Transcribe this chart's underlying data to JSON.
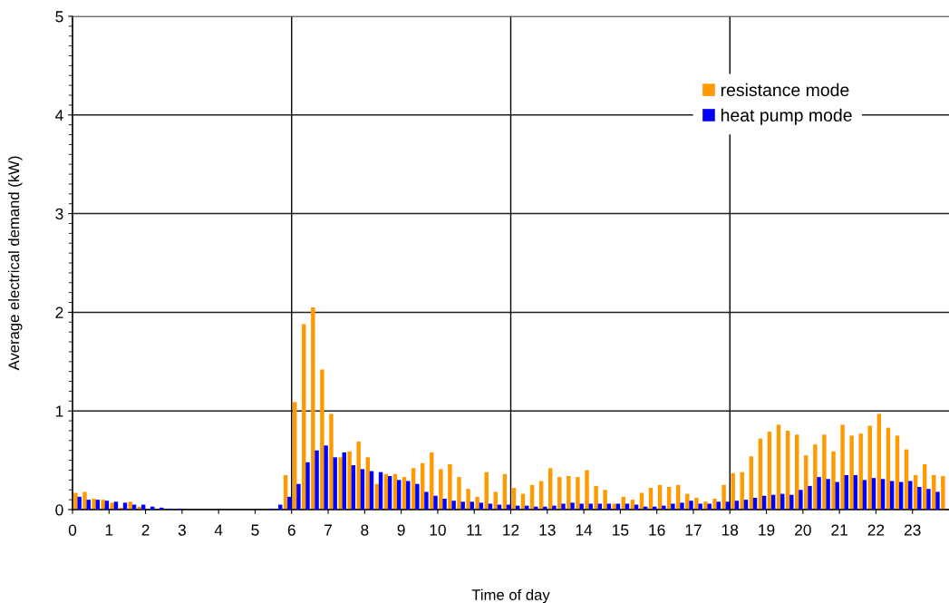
{
  "chart_data": {
    "type": "bar",
    "xlabel": "Time of day",
    "ylabel": "Average electrical demand (kW)",
    "x": [
      0.125,
      0.375,
      0.625,
      0.875,
      1.125,
      1.375,
      1.625,
      1.875,
      2.125,
      2.375,
      2.625,
      2.875,
      3.125,
      3.375,
      3.625,
      3.875,
      4.125,
      4.375,
      4.625,
      4.875,
      5.125,
      5.375,
      5.625,
      5.875,
      6.125,
      6.375,
      6.625,
      6.875,
      7.125,
      7.375,
      7.625,
      7.875,
      8.125,
      8.375,
      8.625,
      8.875,
      9.125,
      9.375,
      9.625,
      9.875,
      10.125,
      10.375,
      10.625,
      10.875,
      11.125,
      11.375,
      11.625,
      11.875,
      12.125,
      12.375,
      12.625,
      12.875,
      13.125,
      13.375,
      13.625,
      13.875,
      14.125,
      14.375,
      14.625,
      14.875,
      15.125,
      15.375,
      15.625,
      15.875,
      16.125,
      16.375,
      16.625,
      16.875,
      17.125,
      17.375,
      17.625,
      17.875,
      18.125,
      18.375,
      18.625,
      18.875,
      19.125,
      19.375,
      19.625,
      19.875,
      20.125,
      20.375,
      20.625,
      20.875,
      21.125,
      21.375,
      21.625,
      21.875,
      22.125,
      22.375,
      22.625,
      22.875,
      23.125,
      23.375,
      23.625,
      23.875
    ],
    "series": [
      {
        "name": "resistance mode",
        "color": "#ff9900",
        "values": [
          0.17,
          0.18,
          0.11,
          0.1,
          0.07,
          0.02,
          0.08,
          0.03,
          0,
          0,
          0,
          0,
          0,
          0,
          0,
          0,
          0,
          0,
          0,
          0,
          0,
          0,
          0,
          0.35,
          1.09,
          1.88,
          2.05,
          1.42,
          0.97,
          0.53,
          0.59,
          0.69,
          0.53,
          0.26,
          0.36,
          0.36,
          0.33,
          0.42,
          0.47,
          0.58,
          0.41,
          0.46,
          0.33,
          0.21,
          0.13,
          0.38,
          0.18,
          0.36,
          0.22,
          0.16,
          0.25,
          0.29,
          0.42,
          0.33,
          0.34,
          0.33,
          0.4,
          0.24,
          0.2,
          0.06,
          0.13,
          0.1,
          0.17,
          0.22,
          0.25,
          0.23,
          0.25,
          0.16,
          0.12,
          0.08,
          0.11,
          0.25,
          0.37,
          0.38,
          0.54,
          0.72,
          0.79,
          0.86,
          0.8,
          0.76,
          0.55,
          0.66,
          0.76,
          0.59,
          0.86,
          0.75,
          0.77,
          0.85,
          0.97,
          0.83,
          0.75,
          0.61,
          0.35,
          0.46,
          0.35,
          0.34
        ]
      },
      {
        "name": "heat pump mode",
        "color": "#0000ff",
        "values": [
          0.13,
          0.1,
          0.1,
          0.09,
          0.08,
          0.07,
          0.05,
          0.05,
          0.03,
          0.02,
          0.01,
          0.01,
          0,
          0,
          0,
          0,
          0,
          0,
          0,
          0,
          0,
          0.01,
          0.05,
          0.13,
          0.26,
          0.48,
          0.6,
          0.65,
          0.53,
          0.58,
          0.45,
          0.41,
          0.39,
          0.38,
          0.34,
          0.3,
          0.29,
          0.26,
          0.18,
          0.14,
          0.11,
          0.09,
          0.08,
          0.08,
          0.07,
          0.06,
          0.05,
          0.05,
          0.04,
          0.04,
          0.03,
          0.03,
          0.04,
          0.06,
          0.07,
          0.06,
          0.06,
          0.06,
          0.06,
          0.06,
          0.06,
          0.05,
          0.03,
          0.03,
          0.04,
          0.06,
          0.07,
          0.09,
          0.06,
          0.06,
          0.08,
          0.08,
          0.09,
          0.1,
          0.12,
          0.14,
          0.15,
          0.16,
          0.15,
          0.2,
          0.24,
          0.33,
          0.31,
          0.28,
          0.35,
          0.35,
          0.3,
          0.32,
          0.31,
          0.29,
          0.28,
          0.29,
          0.23,
          0.21,
          0.18,
          null
        ]
      }
    ],
    "xlim": [
      0,
      24
    ],
    "xticks": [
      0,
      1,
      2,
      3,
      4,
      5,
      6,
      7,
      8,
      9,
      10,
      11,
      12,
      13,
      14,
      15,
      16,
      17,
      18,
      19,
      20,
      21,
      22,
      23
    ],
    "ylim": [
      0,
      5
    ],
    "yticks": [
      0,
      {
        "value": 0.1,
        "label": null
      },
      {
        "value": 0.2,
        "label": null
      },
      {
        "value": 0.3,
        "label": null
      },
      {
        "value": 0.4,
        "label": null
      },
      {
        "value": 0.5,
        "label": null
      },
      {
        "value": 0.6,
        "label": null
      },
      {
        "value": 0.7,
        "label": null
      },
      {
        "value": 0.8,
        "label": null
      },
      {
        "value": 0.9,
        "label": null
      },
      1,
      {
        "value": 1.1,
        "label": null
      },
      {
        "value": 1.2,
        "label": null
      },
      {
        "value": 1.3,
        "label": null
      },
      {
        "value": 1.4,
        "label": null
      },
      {
        "value": 1.5,
        "label": null
      },
      {
        "value": 1.6,
        "label": null
      },
      {
        "value": 1.7,
        "label": null
      },
      {
        "value": 1.8,
        "label": null
      },
      {
        "value": 1.9,
        "label": null
      },
      2,
      {
        "value": 2.1,
        "label": null
      },
      {
        "value": 2.2,
        "label": null
      },
      {
        "value": 2.3,
        "label": null
      },
      {
        "value": 2.4,
        "label": null
      },
      {
        "value": 2.5,
        "label": null
      },
      {
        "value": 2.6,
        "label": null
      },
      {
        "value": 2.7,
        "label": null
      },
      {
        "value": 2.8,
        "label": null
      },
      {
        "value": 2.9,
        "label": null
      },
      3,
      {
        "value": 3.1,
        "label": null
      },
      {
        "value": 3.2,
        "label": null
      },
      {
        "value": 3.3,
        "label": null
      },
      {
        "value": 3.4,
        "label": null
      },
      {
        "value": 3.5,
        "label": null
      },
      {
        "value": 3.6,
        "label": null
      },
      {
        "value": 3.7,
        "label": null
      },
      {
        "value": 3.8,
        "label": null
      },
      {
        "value": 3.9,
        "label": null
      },
      4,
      {
        "value": 4.1,
        "label": null
      },
      {
        "value": 4.2,
        "label": null
      },
      {
        "value": 4.3,
        "label": null
      },
      {
        "value": 4.4,
        "label": null
      },
      {
        "value": 4.5,
        "label": null
      },
      {
        "value": 4.6,
        "label": null
      },
      {
        "value": 4.7,
        "label": null
      },
      {
        "value": 4.8,
        "label": null
      },
      {
        "value": 4.9,
        "label": null
      },
      5
    ],
    "ref_lines": [
      {
        "axis": "x",
        "value": 6,
        "color": "#000000"
      },
      {
        "axis": "x",
        "value": 12,
        "color": "#000000"
      },
      {
        "axis": "x",
        "value": 18,
        "color": "#000000"
      }
    ],
    "grid": "y",
    "legend": "top right"
  }
}
